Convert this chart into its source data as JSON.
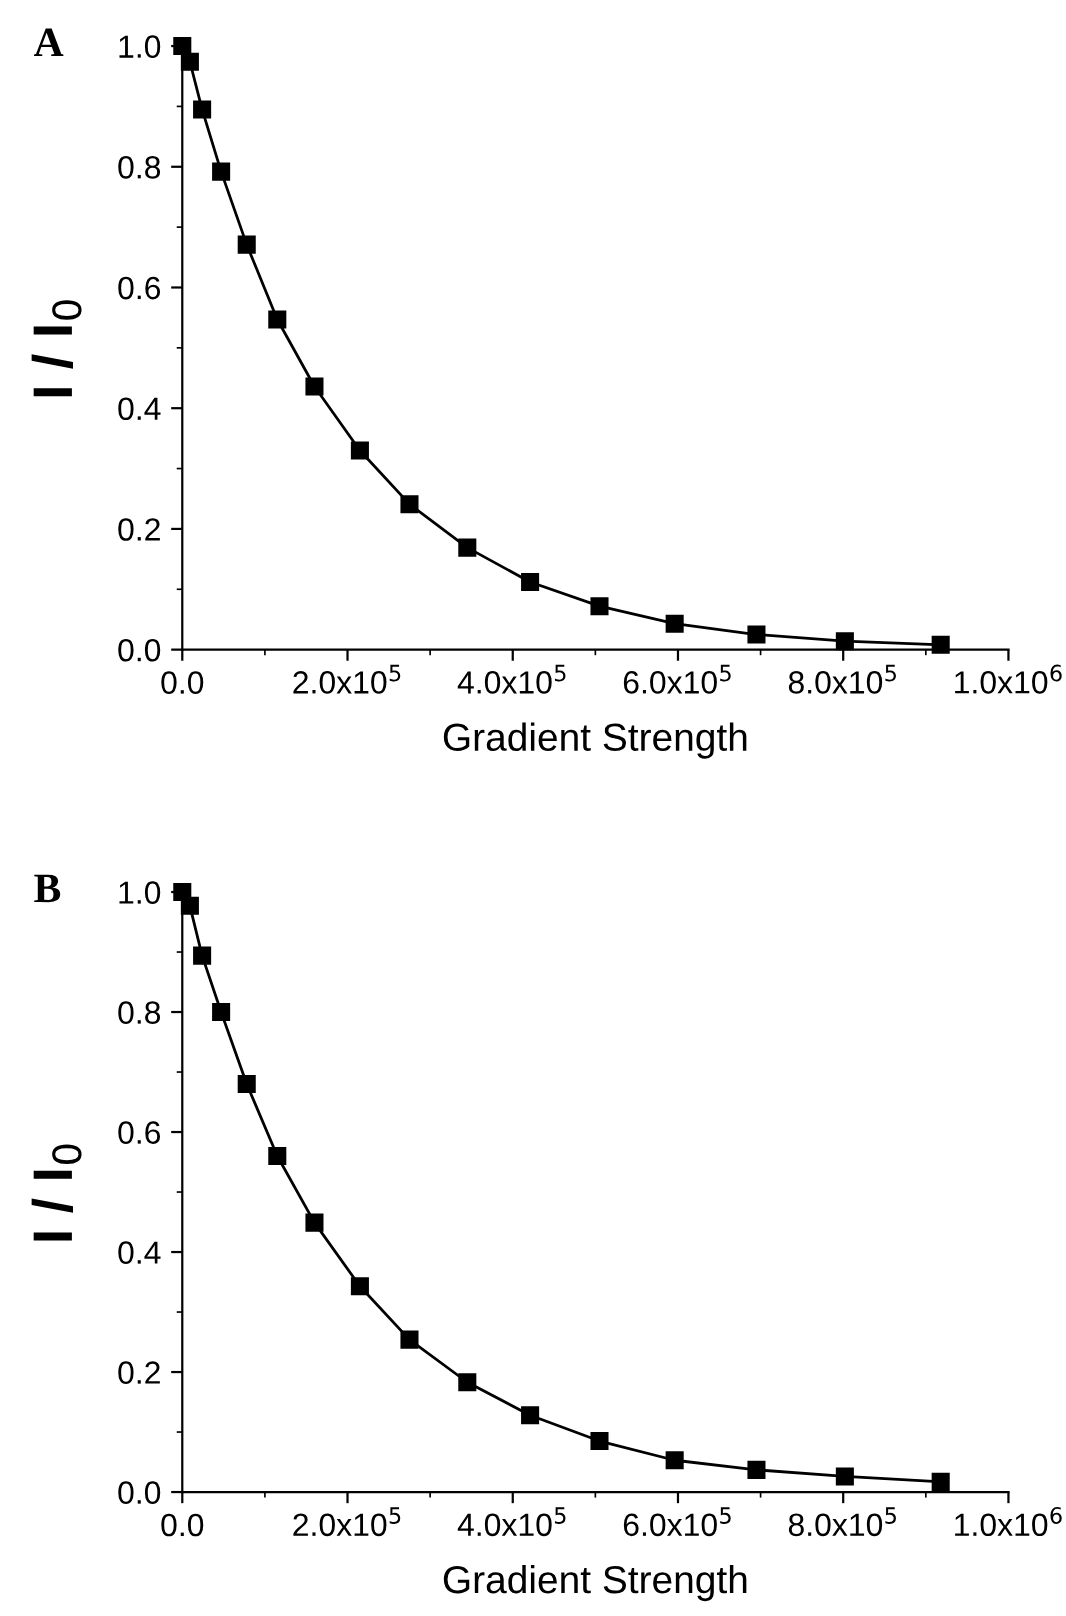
{
  "chart_data": [
    {
      "type": "line",
      "title": "A",
      "xlabel": "Gradient Strength",
      "ylabel": "I / I$_{0}$",
      "marker": "square",
      "line_style": "solid",
      "grid": false,
      "legend": false,
      "x": [
        0,
        9200,
        24000,
        47000,
        78000,
        115000,
        160000,
        215000,
        275000,
        345000,
        421000,
        505000,
        596000,
        695000,
        802000,
        918000
      ],
      "series": [
        {
          "color": "#000000",
          "values": [
            1.0,
            0.974,
            0.895,
            0.792,
            0.671,
            0.547,
            0.436,
            0.33,
            0.241,
            0.169,
            0.112,
            0.072,
            0.043,
            0.025,
            0.014,
            0.008
          ]
        }
      ],
      "xlim": [
        0,
        1000000
      ],
      "ylim": [
        0,
        1.0
      ],
      "xticks": [
        {
          "value": 0,
          "label": "0.0"
        },
        {
          "value": 100000,
          "label": null
        },
        {
          "value": 200000,
          "label": "2.0x10$^{5}$"
        },
        {
          "value": 300000,
          "label": null
        },
        {
          "value": 400000,
          "label": "4.0x10$^{5}$"
        },
        {
          "value": 500000,
          "label": null
        },
        {
          "value": 600000,
          "label": "6.0x10$^{5}$"
        },
        {
          "value": 700000,
          "label": null
        },
        {
          "value": 800000,
          "label": "8.0x10$^{5}$"
        },
        {
          "value": 900000,
          "label": null
        },
        {
          "value": 1000000,
          "label": "1.0x10$^{6}$"
        }
      ],
      "yticks": [
        {
          "value": 0,
          "label": "0.0"
        },
        {
          "value": 0.1,
          "label": null
        },
        {
          "value": 0.2,
          "label": "0.2"
        },
        {
          "value": 0.3,
          "label": null
        },
        {
          "value": 0.4,
          "label": "0.4"
        },
        {
          "value": 0.5,
          "label": null
        },
        {
          "value": 0.6,
          "label": "0.6"
        },
        {
          "value": 0.7,
          "label": null
        },
        {
          "value": 0.8,
          "label": "0.8"
        },
        {
          "value": 0.9,
          "label": null
        },
        {
          "value": 1.0,
          "label": "1.0"
        }
      ]
    },
    {
      "type": "line",
      "title": "B",
      "xlabel": "Gradient Strength",
      "ylabel": "I / I$_{0}$",
      "marker": "square",
      "line_style": "solid",
      "grid": false,
      "legend": false,
      "x": [
        0,
        9200,
        24000,
        47000,
        78000,
        115000,
        160000,
        215000,
        275000,
        345000,
        421000,
        505000,
        596000,
        695000,
        802000,
        918000
      ],
      "series": [
        {
          "color": "#000000",
          "values": [
            1.0,
            0.977,
            0.894,
            0.8,
            0.68,
            0.56,
            0.449,
            0.343,
            0.254,
            0.183,
            0.128,
            0.085,
            0.053,
            0.037,
            0.026,
            0.017
          ]
        }
      ],
      "xlim": [
        0,
        1000000
      ],
      "ylim": [
        0,
        1.0
      ],
      "xticks": [
        {
          "value": 0,
          "label": "0.0"
        },
        {
          "value": 100000,
          "label": null
        },
        {
          "value": 200000,
          "label": "2.0x10$^{5}$"
        },
        {
          "value": 300000,
          "label": null
        },
        {
          "value": 400000,
          "label": "4.0x10$^{5}$"
        },
        {
          "value": 500000,
          "label": null
        },
        {
          "value": 600000,
          "label": "6.0x10$^{5}$"
        },
        {
          "value": 700000,
          "label": null
        },
        {
          "value": 800000,
          "label": "8.0x10$^{5}$"
        },
        {
          "value": 900000,
          "label": null
        },
        {
          "value": 1000000,
          "label": "1.0x10$^{6}$"
        }
      ],
      "yticks": [
        {
          "value": 0,
          "label": "0.0"
        },
        {
          "value": 0.1,
          "label": null
        },
        {
          "value": 0.2,
          "label": "0.2"
        },
        {
          "value": 0.3,
          "label": null
        },
        {
          "value": 0.4,
          "label": "0.4"
        },
        {
          "value": 0.5,
          "label": null
        },
        {
          "value": 0.6,
          "label": "0.6"
        },
        {
          "value": 0.7,
          "label": null
        },
        {
          "value": 0.8,
          "label": "0.8"
        },
        {
          "value": 0.9,
          "label": null
        },
        {
          "value": 1.0,
          "label": "1.0"
        }
      ]
    }
  ]
}
